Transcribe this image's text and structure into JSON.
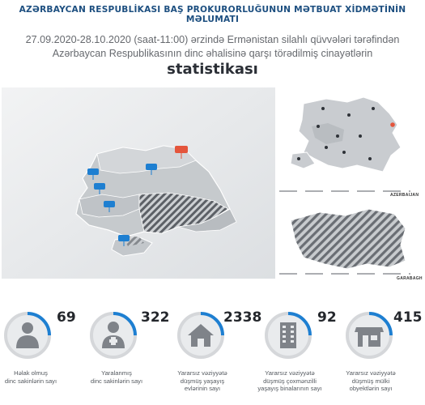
{
  "header": {
    "title": "AZƏRBAYCAN RESPUBLİKASI BAŞ PROKURORLUĞUNUN MƏTBUAT XİDMƏTİNİN MƏLUMATI",
    "subtitle_line1": "27.09.2020-28.10.2020 (saat-11:00) ərzində Ermənistan silahlı qüvvələri tərəfindən",
    "subtitle_line2": "Azərbaycan Respublikasının dinc əhalisinə qarşı törədilmiş cinayətlərin",
    "subtitle_bold": "statistikası"
  },
  "side_maps": {
    "top_label": "AZERBAIJAN",
    "bottom_label": "GARABAGH"
  },
  "colors": {
    "title": "#1d4f80",
    "accent_blue": "#1e7fd1",
    "highlight_red": "#e4553c",
    "ring_grey": "#d5d7da",
    "map_grey": "#cfd2d5"
  },
  "stats": [
    {
      "value": "69",
      "label_lines": [
        "Həlak olmuş",
        "dinc sakinlərin sayı"
      ],
      "icon": "person-icon"
    },
    {
      "value": "322",
      "label_lines": [
        "Yaralanmış",
        "dinc sakinlərin sayı"
      ],
      "icon": "injured-person-icon"
    },
    {
      "value": "2338",
      "label_lines": [
        "Yararsız vəziyyətə",
        "düşmüş yaşayış",
        "evlərinin sayı"
      ],
      "icon": "house-icon"
    },
    {
      "value": "92",
      "label_lines": [
        "Yararsız vəziyyətə",
        "düşmüş çoxmənzilli",
        "yaşayış binalarının sayı"
      ],
      "icon": "apartment-building-icon"
    },
    {
      "value": "415",
      "label_lines": [
        "Yararsız vəziyyətə",
        "düşmüş mülki",
        "obyektlərin sayı"
      ],
      "icon": "shop-icon"
    }
  ]
}
